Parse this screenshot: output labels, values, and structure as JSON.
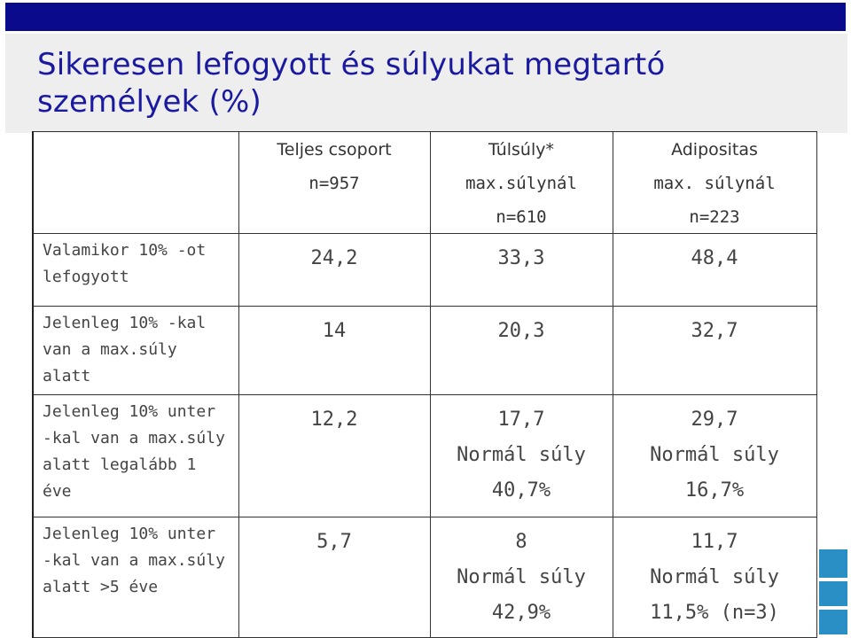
{
  "title": "Sikeresen lefogyott és súlyukat megtartó személyek (%)",
  "columns": [
    {
      "line1": "Teljes csoport",
      "line2": "n=957",
      "line3": ""
    },
    {
      "line1": "Túlsúly*",
      "line2": "max.súlynál",
      "line3": "n=610"
    },
    {
      "line1": "Adipositas",
      "line2": "max. súlynál",
      "line3": "n=223"
    }
  ],
  "rows": [
    {
      "label": "Valamikor 10% -ot\nlefogyott",
      "cells": [
        {
          "lines": [
            "24,2"
          ]
        },
        {
          "lines": [
            "33,3"
          ]
        },
        {
          "lines": [
            "48,4"
          ]
        }
      ]
    },
    {
      "label": "Jelenleg 10% -kal\nvan a max.súly\nalatt",
      "cells": [
        {
          "lines": [
            "14"
          ]
        },
        {
          "lines": [
            "20,3"
          ]
        },
        {
          "lines": [
            "32,7"
          ]
        }
      ]
    },
    {
      "label": "Jelenleg 10% unter\n-kal van a max.súly\nalatt legalább 1 éve",
      "cells": [
        {
          "lines": [
            "12,2"
          ]
        },
        {
          "lines": [
            "17,7",
            "Normál súly",
            "40,7%"
          ]
        },
        {
          "lines": [
            "29,7",
            "Normál súly",
            "16,7%"
          ]
        }
      ]
    },
    {
      "label": "Jelenleg 10% unter\n-kal van a max.súly\nalatt >5 éve",
      "cells": [
        {
          "lines": [
            "5,7"
          ]
        },
        {
          "lines": [
            "8",
            "Normál súly",
            "42,9%"
          ]
        },
        {
          "lines": [
            "11,7",
            "Normál súly",
            "11,5% (n=3)"
          ]
        }
      ]
    }
  ],
  "colors": {
    "accent": "#0a0a8c",
    "title": "#1a1aa0",
    "deco": "#2a8fc4"
  }
}
